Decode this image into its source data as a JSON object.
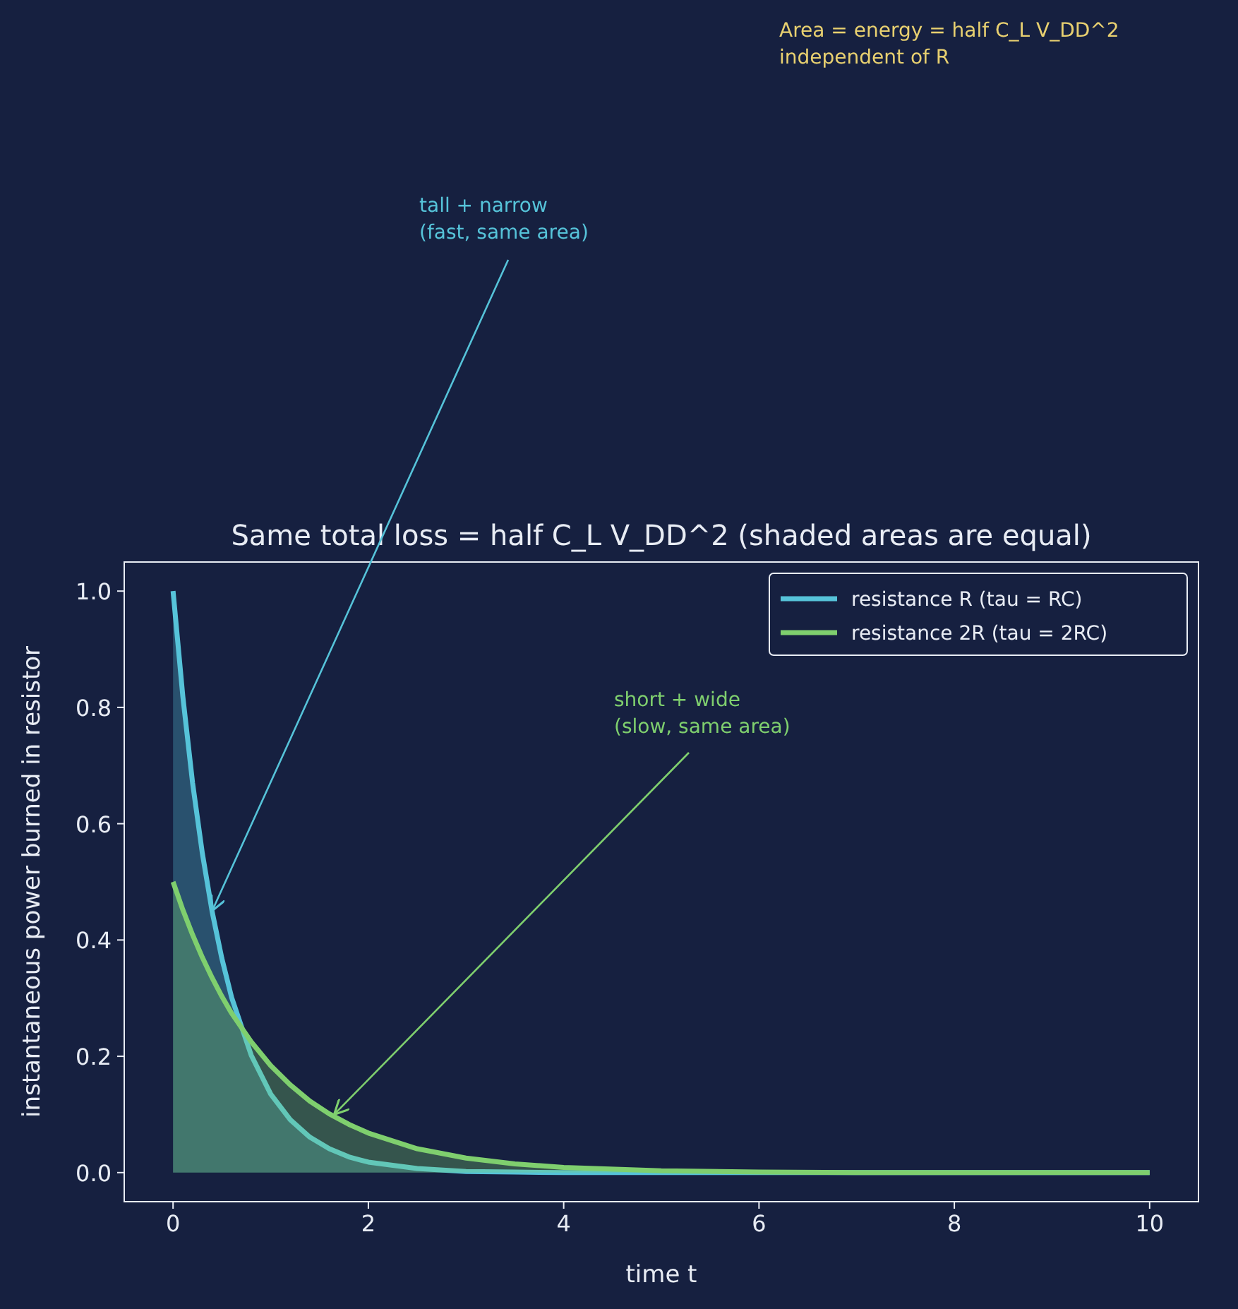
{
  "chart_data": {
    "type": "area",
    "title": "Same total loss = half C_L V_DD^2  (shaded areas are equal)",
    "xlabel": "time  t",
    "ylabel": "instantaneous power burned in resistor",
    "x": [
      0,
      0.1,
      0.2,
      0.3,
      0.4,
      0.5,
      0.6,
      0.8,
      1,
      1.2,
      1.4,
      1.6,
      1.8,
      2,
      2.5,
      3,
      3.5,
      4,
      5,
      6,
      7,
      8,
      10
    ],
    "series": [
      {
        "name": "resistance R  (tau = RC)",
        "color": "#56c3d9",
        "values": [
          1,
          0.819,
          0.67,
          0.549,
          0.449,
          0.368,
          0.301,
          0.202,
          0.135,
          0.091,
          0.061,
          0.041,
          0.027,
          0.018,
          0.007,
          0.002,
          0.001,
          0,
          0,
          0,
          0,
          0,
          0
        ]
      },
      {
        "name": "resistance 2R  (tau = 2RC)",
        "color": "#7fcf6e",
        "values": [
          0.5,
          0.452,
          0.409,
          0.37,
          0.335,
          0.303,
          0.274,
          0.225,
          0.184,
          0.151,
          0.123,
          0.101,
          0.083,
          0.068,
          0.041,
          0.025,
          0.015,
          0.009,
          0.003,
          0.001,
          0,
          0,
          0
        ]
      }
    ],
    "xlim": [
      -0.5,
      10.5
    ],
    "xticks": [
      0,
      2,
      4,
      6,
      8,
      10
    ],
    "ylim": [
      -0.05,
      1.05
    ],
    "yticks": [
      {
        "value": 0,
        "label": "0.0"
      },
      {
        "value": 0.2,
        "label": "0.2"
      },
      {
        "value": 0.4,
        "label": "0.4"
      },
      {
        "value": 0.6,
        "label": "0.6"
      },
      {
        "value": 0.8,
        "label": "0.8"
      },
      {
        "value": 1,
        "label": "1.0"
      }
    ],
    "grid": false,
    "legend": "top right",
    "annotations": [
      {
        "text": "tall + narrow\n(fast, same area)",
        "x": 0.4,
        "y": 0.45
      },
      {
        "text": "short + wide\n(slow, same area)",
        "x": 1.65,
        "y": 0.1
      },
      "Area = energy = half C_L V_DD^2\nindependent of R"
    ]
  }
}
